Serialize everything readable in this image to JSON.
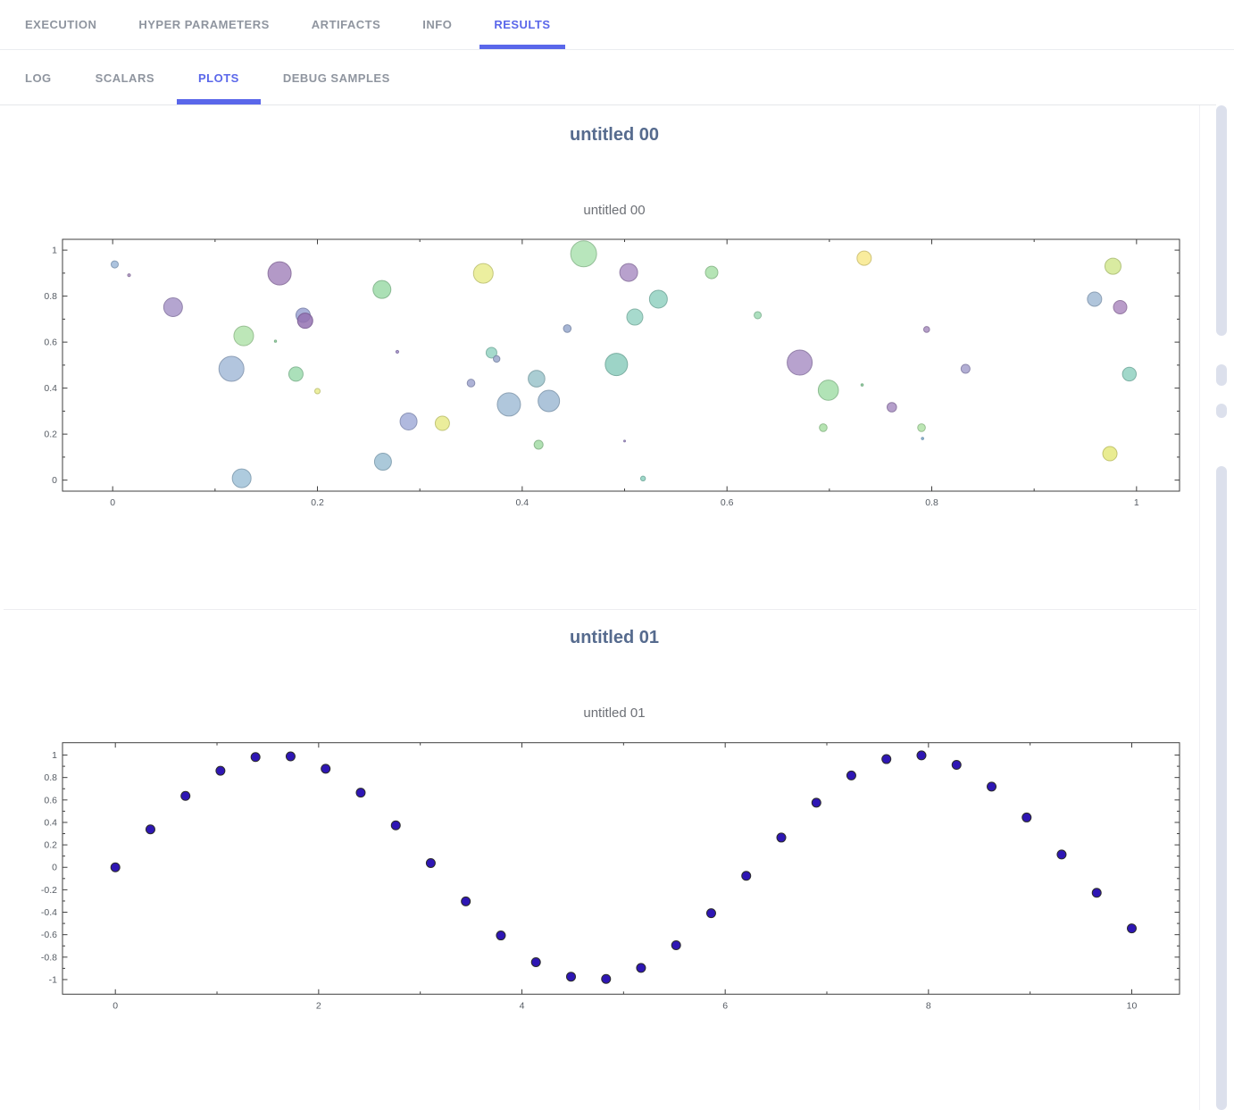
{
  "tabs_primary": {
    "items": [
      {
        "label": "EXECUTION",
        "active": false
      },
      {
        "label": "HYPER PARAMETERS",
        "active": false
      },
      {
        "label": "ARTIFACTS",
        "active": false
      },
      {
        "label": "INFO",
        "active": false
      },
      {
        "label": "RESULTS",
        "active": true
      }
    ]
  },
  "tabs_secondary": {
    "items": [
      {
        "label": "LOG",
        "active": false
      },
      {
        "label": "SCALARS",
        "active": false
      },
      {
        "label": "PLOTS",
        "active": true
      },
      {
        "label": "DEBUG SAMPLES",
        "active": false
      }
    ]
  },
  "sections": [
    {
      "heading": "untitled 00",
      "plot_title": "untitled 00"
    },
    {
      "heading": "untitled 01",
      "plot_title": "untitled 01"
    }
  ],
  "colors": {
    "accent": "#5a67ea",
    "inactive_tab": "#8f959f",
    "heading": "#566b8e",
    "plot_title": "#6d7076",
    "axis": "#3f3f3f",
    "tick_label": "#555b63",
    "scrollbar_thumb": "#dce0ec",
    "divider": "#ededf1",
    "sine_dot": "#2e16b4",
    "sine_dot_edge": "#2b2b2b"
  },
  "chart_data": [
    {
      "type": "scatter",
      "title": "untitled 00",
      "xlabel": "",
      "ylabel": "",
      "grid": false,
      "legend": null,
      "marker": "bubble",
      "xlim": [
        -0.049,
        1.042
      ],
      "ylim": [
        -0.048,
        1.047
      ],
      "xticks": [
        0,
        0.2,
        0.4,
        0.6,
        0.8,
        1
      ],
      "xtick_labels": [
        "0",
        "0.2",
        "0.4",
        "0.6",
        "0.8",
        "1"
      ],
      "minor_xticks": [
        0.1,
        0.3,
        0.5,
        0.7,
        0.9
      ],
      "yticks": [
        0,
        0.2,
        0.4,
        0.6,
        0.8,
        1
      ],
      "ytick_labels": [
        "0",
        "0.2",
        "0.4",
        "0.6",
        "0.8",
        "1"
      ],
      "minor_yticks": [
        0.1,
        0.3,
        0.5,
        0.7,
        0.9
      ],
      "points": [
        {
          "x": 0.002,
          "y": 0.938,
          "r": 4.0,
          "c": "#9db9d8"
        },
        {
          "x": 0.016,
          "y": 0.891,
          "r": 1.6,
          "c": "#a98fc0"
        },
        {
          "x": 0.059,
          "y": 0.752,
          "r": 10.5,
          "c": "#a795c8"
        },
        {
          "x": 0.163,
          "y": 0.899,
          "r": 13.0,
          "c": "#a687bd"
        },
        {
          "x": 0.263,
          "y": 0.829,
          "r": 10.0,
          "c": "#9cdaa8"
        },
        {
          "x": 0.186,
          "y": 0.717,
          "r": 8.0,
          "c": "#9aa2d2"
        },
        {
          "x": 0.188,
          "y": 0.693,
          "r": 8.5,
          "c": "#9472b2"
        },
        {
          "x": 0.128,
          "y": 0.627,
          "r": 11.0,
          "c": "#b2e3ab"
        },
        {
          "x": 0.159,
          "y": 0.604,
          "r": 1.2,
          "c": "#90d2a0"
        },
        {
          "x": 0.116,
          "y": 0.484,
          "r": 14.0,
          "c": "#a5bbd8"
        },
        {
          "x": 0.179,
          "y": 0.461,
          "r": 8.0,
          "c": "#9cdaae"
        },
        {
          "x": 0.2,
          "y": 0.387,
          "r": 3.0,
          "c": "#e9ec8e"
        },
        {
          "x": 0.278,
          "y": 0.558,
          "r": 1.6,
          "c": "#a08cc8"
        },
        {
          "x": 0.289,
          "y": 0.255,
          "r": 9.5,
          "c": "#a2add8"
        },
        {
          "x": 0.322,
          "y": 0.247,
          "r": 8.0,
          "c": "#e7ea8a"
        },
        {
          "x": 0.264,
          "y": 0.08,
          "r": 9.5,
          "c": "#9cc0d4"
        },
        {
          "x": 0.126,
          "y": 0.008,
          "r": 10.5,
          "c": "#a0c2d8"
        },
        {
          "x": 0.46,
          "y": 0.984,
          "r": 14.5,
          "c": "#ace2b0"
        },
        {
          "x": 0.362,
          "y": 0.899,
          "r": 11.0,
          "c": "#e9ec8e"
        },
        {
          "x": 0.504,
          "y": 0.903,
          "r": 10.0,
          "c": "#ab90c4"
        },
        {
          "x": 0.585,
          "y": 0.903,
          "r": 7.0,
          "c": "#a8dfa8"
        },
        {
          "x": 0.533,
          "y": 0.787,
          "r": 10.0,
          "c": "#92d1c1"
        },
        {
          "x": 0.51,
          "y": 0.709,
          "r": 9.0,
          "c": "#98d4c4"
        },
        {
          "x": 0.63,
          "y": 0.717,
          "r": 4.0,
          "c": "#9fdab4"
        },
        {
          "x": 0.444,
          "y": 0.659,
          "r": 4.3,
          "c": "#97a8cc"
        },
        {
          "x": 0.37,
          "y": 0.554,
          "r": 6.0,
          "c": "#95d4c3"
        },
        {
          "x": 0.375,
          "y": 0.527,
          "r": 3.7,
          "c": "#99a7cb"
        },
        {
          "x": 0.492,
          "y": 0.503,
          "r": 12.5,
          "c": "#8ccdbd"
        },
        {
          "x": 0.671,
          "y": 0.511,
          "r": 14.0,
          "c": "#aa92c6"
        },
        {
          "x": 0.35,
          "y": 0.422,
          "r": 4.3,
          "c": "#9fa5cf"
        },
        {
          "x": 0.414,
          "y": 0.441,
          "r": 9.3,
          "c": "#9bc4cb"
        },
        {
          "x": 0.387,
          "y": 0.329,
          "r": 13.0,
          "c": "#a2bdd6"
        },
        {
          "x": 0.426,
          "y": 0.344,
          "r": 12.0,
          "c": "#9fbad4"
        },
        {
          "x": 0.416,
          "y": 0.154,
          "r": 5.0,
          "c": "#a3dca6"
        },
        {
          "x": 0.5,
          "y": 0.17,
          "r": 1.0,
          "c": "#a08cc8"
        },
        {
          "x": 0.518,
          "y": 0.007,
          "r": 2.7,
          "c": "#8dd1bf"
        },
        {
          "x": 0.734,
          "y": 0.965,
          "r": 8.0,
          "c": "#f8e98c"
        },
        {
          "x": 0.977,
          "y": 0.93,
          "r": 9.0,
          "c": "#d2e890"
        },
        {
          "x": 0.959,
          "y": 0.787,
          "r": 8.0,
          "c": "#a2bbd5"
        },
        {
          "x": 0.984,
          "y": 0.752,
          "r": 7.5,
          "c": "#ad8bc0"
        },
        {
          "x": 0.795,
          "y": 0.655,
          "r": 3.3,
          "c": "#a88ec0"
        },
        {
          "x": 0.833,
          "y": 0.484,
          "r": 5.0,
          "c": "#a5a0cd"
        },
        {
          "x": 0.993,
          "y": 0.461,
          "r": 7.7,
          "c": "#91d1c1"
        },
        {
          "x": 0.699,
          "y": 0.391,
          "r": 11.3,
          "c": "#a3dea9"
        },
        {
          "x": 0.732,
          "y": 0.414,
          "r": 1.3,
          "c": "#8cd09e"
        },
        {
          "x": 0.761,
          "y": 0.317,
          "r": 5.3,
          "c": "#a88ec2"
        },
        {
          "x": 0.694,
          "y": 0.228,
          "r": 4.3,
          "c": "#a9dfa5"
        },
        {
          "x": 0.79,
          "y": 0.228,
          "r": 4.3,
          "c": "#b0e2a7"
        },
        {
          "x": 0.791,
          "y": 0.181,
          "r": 1.3,
          "c": "#8ab6d6"
        },
        {
          "x": 0.974,
          "y": 0.115,
          "r": 8.0,
          "c": "#e5e97e"
        }
      ]
    },
    {
      "type": "scatter",
      "title": "untitled 01",
      "xlabel": "",
      "ylabel": "",
      "grid": false,
      "legend": null,
      "marker": "dot",
      "dot_r": 5,
      "dot_fill": "#2e16b4",
      "dot_edge": "#2b2b2b",
      "xlim": [
        -0.52,
        10.47
      ],
      "ylim": [
        -1.13,
        1.11
      ],
      "xticks": [
        0,
        2,
        4,
        6,
        8,
        10
      ],
      "xtick_labels": [
        "0",
        "2",
        "4",
        "6",
        "8",
        "10"
      ],
      "minor_xticks": [
        1,
        3,
        5,
        7,
        9
      ],
      "yticks": [
        -1,
        -0.8,
        -0.6,
        -0.4,
        -0.2,
        0,
        0.2,
        0.4,
        0.6,
        0.8,
        1
      ],
      "ytick_labels": [
        "-1",
        "-0.8",
        "-0.6",
        "-0.4",
        "-0.2",
        "0",
        "0.2",
        "0.4",
        "0.6",
        "0.8",
        "1"
      ],
      "minor_yticks": [
        -0.9,
        -0.7,
        -0.5,
        -0.3,
        -0.1,
        0.1,
        0.3,
        0.5,
        0.7,
        0.9
      ],
      "x": [
        0,
        0.345,
        0.69,
        1.034,
        1.379,
        1.724,
        2.069,
        2.414,
        2.759,
        3.103,
        3.448,
        3.793,
        4.138,
        4.483,
        4.828,
        5.172,
        5.517,
        5.862,
        6.207,
        6.552,
        6.897,
        7.241,
        7.586,
        7.931,
        8.276,
        8.621,
        8.966,
        9.31,
        9.655,
        10
      ],
      "y": [
        0,
        0.338,
        0.636,
        0.86,
        0.982,
        0.988,
        0.878,
        0.665,
        0.374,
        0.038,
        -0.303,
        -0.607,
        -0.845,
        -0.974,
        -0.994,
        -0.896,
        -0.694,
        -0.409,
        -0.076,
        0.265,
        0.576,
        0.818,
        0.964,
        0.997,
        0.913,
        0.719,
        0.444,
        0.114,
        -0.227,
        -0.544
      ]
    }
  ]
}
